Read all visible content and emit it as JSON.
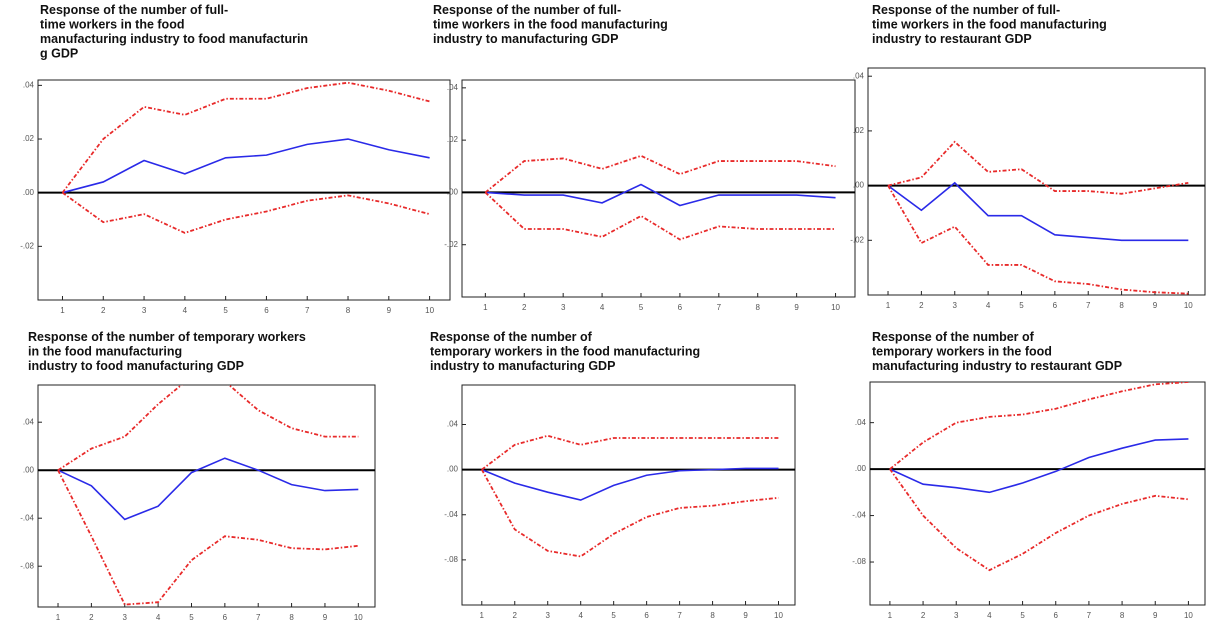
{
  "chart_data": [
    {
      "type": "line",
      "title": [
        "Response of the number of full-",
        "time workers in the food",
        "manufacturing  industry to food manufacturin",
        "g GDP"
      ],
      "x": [
        1,
        2,
        3,
        4,
        5,
        6,
        7,
        8,
        9,
        10
      ],
      "xlim": [
        0.4,
        10.5
      ],
      "xticks": [
        1,
        2,
        3,
        4,
        5,
        6,
        7,
        8,
        9,
        10
      ],
      "ylim": [
        -0.04,
        0.042
      ],
      "yticks": [
        {
          "value": -0.02,
          "label": "-.02"
        },
        {
          "value": 0,
          "label": ".00"
        },
        {
          "value": 0.02,
          "label": ".02"
        },
        {
          "value": 0.04,
          "label": ".04"
        }
      ],
      "series": [
        {
          "color": "#2a2ae8",
          "dash": false,
          "values": [
            0,
            0.004,
            0.012,
            0.007,
            0.013,
            0.014,
            0.018,
            0.02,
            0.016,
            0.013
          ]
        },
        {
          "color": "#e82a2a",
          "dash": true,
          "values": [
            0,
            0.02,
            0.032,
            0.029,
            0.035,
            0.035,
            0.039,
            0.041,
            0.038,
            0.034
          ]
        },
        {
          "color": "#e82a2a",
          "dash": true,
          "values": [
            0,
            -0.011,
            -0.008,
            -0.015,
            -0.01,
            -0.007,
            -0.003,
            -0.001,
            -0.004,
            -0.008
          ]
        }
      ]
    },
    {
      "type": "line",
      "title": [
        "Response of the number  of full-",
        "time workers in the food manufacturing",
        "industry  to manufacturing   GDP"
      ],
      "x": [
        1,
        2,
        3,
        4,
        5,
        6,
        7,
        8,
        9,
        10
      ],
      "xlim": [
        0.4,
        10.5
      ],
      "xticks": [
        1,
        2,
        3,
        4,
        5,
        6,
        7,
        8,
        9,
        10
      ],
      "ylim": [
        -0.04,
        0.043
      ],
      "yticks": [
        {
          "value": -0.02,
          "label": "-.02"
        },
        {
          "value": 0,
          "label": ".00"
        },
        {
          "value": 0.02,
          "label": ".02"
        },
        {
          "value": 0.04,
          "label": ".04"
        }
      ],
      "series": [
        {
          "color": "#2a2ae8",
          "dash": false,
          "values": [
            0,
            -0.001,
            -0.001,
            -0.004,
            0.003,
            -0.005,
            -0.001,
            -0.001,
            -0.001,
            -0.002
          ]
        },
        {
          "color": "#e82a2a",
          "dash": true,
          "values": [
            0,
            0.012,
            0.013,
            0.009,
            0.014,
            0.007,
            0.012,
            0.012,
            0.012,
            0.01
          ]
        },
        {
          "color": "#e82a2a",
          "dash": true,
          "values": [
            0,
            -0.014,
            -0.014,
            -0.017,
            -0.009,
            -0.018,
            -0.013,
            -0.014,
            -0.014,
            -0.014
          ]
        }
      ]
    },
    {
      "type": "line",
      "title": [
        "Response of the number  of full-",
        "time workers in the food manufacturing",
        "industry  to restaurant  GDP"
      ],
      "x": [
        1,
        2,
        3,
        4,
        5,
        6,
        7,
        8,
        9,
        10
      ],
      "xlim": [
        0.4,
        10.5
      ],
      "xticks": [
        1,
        2,
        3,
        4,
        5,
        6,
        7,
        8,
        9,
        10
      ],
      "ylim": [
        -0.04,
        0.043
      ],
      "yticks": [
        {
          "value": -0.02,
          "label": "-.02"
        },
        {
          "value": 0,
          "label": ".00"
        },
        {
          "value": 0.02,
          "label": ".02"
        },
        {
          "value": 0.04,
          "label": ".04"
        }
      ],
      "series": [
        {
          "color": "#2a2ae8",
          "dash": false,
          "values": [
            0,
            -0.009,
            0.001,
            -0.011,
            -0.011,
            -0.018,
            -0.019,
            -0.02,
            -0.02,
            -0.02
          ]
        },
        {
          "color": "#e82a2a",
          "dash": true,
          "values": [
            0,
            0.003,
            0.016,
            0.005,
            0.006,
            -0.002,
            -0.002,
            -0.003,
            -0.001,
            0.001
          ]
        },
        {
          "color": "#e82a2a",
          "dash": true,
          "values": [
            0,
            -0.021,
            -0.015,
            -0.029,
            -0.029,
            -0.035,
            -0.036,
            -0.038,
            -0.039,
            -0.0395
          ]
        }
      ]
    },
    {
      "type": "line",
      "title": [
        "Response of the number of temporary workers",
        "in the food manufacturing",
        "industry to food manufacturing   GDP"
      ],
      "x": [
        1,
        2,
        3,
        4,
        5,
        6,
        7,
        8,
        9,
        10
      ],
      "xlim": [
        0.4,
        10.5
      ],
      "xticks": [
        1,
        2,
        3,
        4,
        5,
        6,
        7,
        8,
        9,
        10
      ],
      "ylim": [
        -0.114,
        0.071
      ],
      "yticks": [
        {
          "value": -0.08,
          "label": "-.08"
        },
        {
          "value": -0.04,
          "label": "-.04"
        },
        {
          "value": 0,
          "label": ".00"
        },
        {
          "value": 0.04,
          "label": ".04"
        }
      ],
      "series": [
        {
          "color": "#2a2ae8",
          "dash": false,
          "values": [
            0,
            -0.013,
            -0.041,
            -0.03,
            -0.002,
            0.01,
            0,
            -0.012,
            -0.017,
            -0.016
          ]
        },
        {
          "color": "#e82a2a",
          "dash": true,
          "values": [
            0,
            0.018,
            0.028,
            0.055,
            0.078,
            0.074,
            0.05,
            0.035,
            0.028,
            0.028
          ]
        },
        {
          "color": "#e82a2a",
          "dash": true,
          "values": [
            0,
            -0.055,
            -0.112,
            -0.11,
            -0.075,
            -0.055,
            -0.058,
            -0.065,
            -0.066,
            -0.063
          ]
        }
      ]
    },
    {
      "type": "line",
      "title": [
        "Response of the number of",
        "temporary workers in the   food manufacturing",
        "industry to manufacturing   GDP"
      ],
      "x": [
        1,
        2,
        3,
        4,
        5,
        6,
        7,
        8,
        9,
        10
      ],
      "xlim": [
        0.4,
        10.5
      ],
      "xticks": [
        1,
        2,
        3,
        4,
        5,
        6,
        7,
        8,
        9,
        10
      ],
      "ylim": [
        -0.12,
        0.075
      ],
      "yticks": [
        {
          "value": -0.08,
          "label": "-.08"
        },
        {
          "value": -0.04,
          "label": "-.04"
        },
        {
          "value": 0,
          "label": ".00"
        },
        {
          "value": 0.04,
          "label": ".04"
        }
      ],
      "series": [
        {
          "color": "#2a2ae8",
          "dash": false,
          "values": [
            0,
            -0.012,
            -0.02,
            -0.027,
            -0.014,
            -0.005,
            -0.001,
            0,
            0.001,
            0.001
          ]
        },
        {
          "color": "#e82a2a",
          "dash": true,
          "values": [
            0,
            0.022,
            0.03,
            0.022,
            0.028,
            0.028,
            0.028,
            0.028,
            0.028,
            0.028
          ]
        },
        {
          "color": "#e82a2a",
          "dash": true,
          "values": [
            0,
            -0.053,
            -0.072,
            -0.077,
            -0.057,
            -0.042,
            -0.034,
            -0.032,
            -0.028,
            -0.025
          ]
        }
      ]
    },
    {
      "type": "line",
      "title": [
        "Response of the number of",
        "temporary workers in the  food",
        "manufacturing   industry to restaurant  GDP"
      ],
      "x": [
        1,
        2,
        3,
        4,
        5,
        6,
        7,
        8,
        9,
        10
      ],
      "xlim": [
        0.4,
        10.5
      ],
      "xticks": [
        1,
        2,
        3,
        4,
        5,
        6,
        7,
        8,
        9,
        10
      ],
      "ylim": [
        -0.117,
        0.075
      ],
      "yticks": [
        {
          "value": -0.08,
          "label": "-.08"
        },
        {
          "value": -0.04,
          "label": "-.04"
        },
        {
          "value": 0,
          "label": ".00"
        },
        {
          "value": 0.04,
          "label": ".04"
        }
      ],
      "series": [
        {
          "color": "#2a2ae8",
          "dash": false,
          "values": [
            0,
            -0.013,
            -0.016,
            -0.02,
            -0.012,
            -0.002,
            0.01,
            0.018,
            0.025,
            0.026
          ]
        },
        {
          "color": "#e82a2a",
          "dash": true,
          "values": [
            0,
            0.023,
            0.04,
            0.045,
            0.047,
            0.052,
            0.06,
            0.067,
            0.073,
            0.075
          ]
        },
        {
          "color": "#e82a2a",
          "dash": true,
          "values": [
            0,
            -0.04,
            -0.068,
            -0.087,
            -0.073,
            -0.055,
            -0.04,
            -0.03,
            -0.023,
            -0.026
          ]
        }
      ]
    }
  ]
}
